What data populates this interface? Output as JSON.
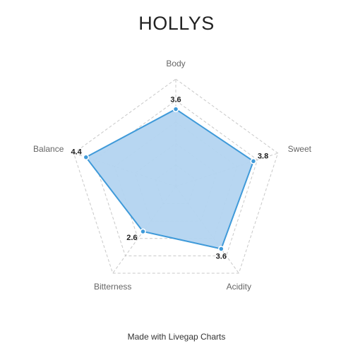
{
  "title": "HOLLYS",
  "footer": "Made with Livegap Charts",
  "colors": {
    "fill": "#b3d4f0",
    "stroke": "#3f9ad9",
    "grid": "#c8c8c8"
  },
  "chart_data": {
    "type": "radar",
    "title": "HOLLYS",
    "axes": [
      "Body",
      "Sweet",
      "Acidity",
      "Bitterness",
      "Balance"
    ],
    "series": [
      {
        "values": [
          3.6,
          3.8,
          3.6,
          2.6,
          4.4
        ]
      }
    ],
    "rlim": [
      0,
      5
    ],
    "grid_rings": 5,
    "grid": true,
    "legend": "none"
  }
}
